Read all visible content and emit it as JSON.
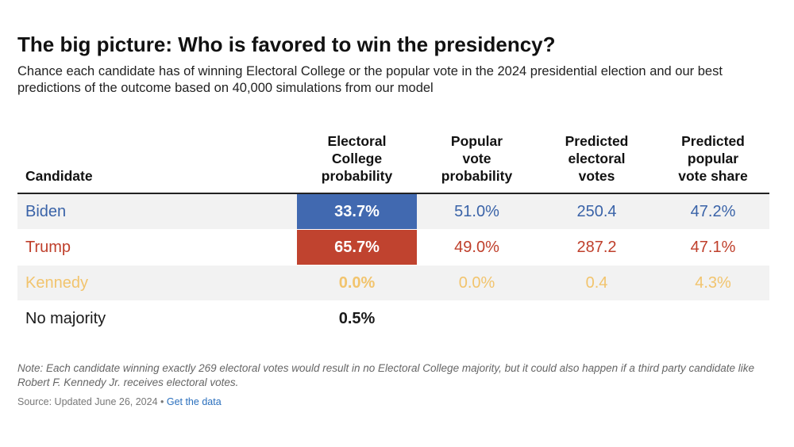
{
  "title": "The big picture: Who is favored to win the presidency?",
  "subtitle": "Chance each candidate has of winning Electoral College or the popular vote in the 2024 presidential election and our best predictions of the outcome based on 40,000 simulations from our model",
  "colors": {
    "biden": "#3a63a8",
    "trump": "#bf3f2b",
    "kennedy": "#f2c46d",
    "no_majority": "#1a1a1a",
    "biden_fill": "#4169b0",
    "trump_fill": "#c0432f"
  },
  "chart_data": {
    "type": "table",
    "columns": [
      "Candidate",
      "Electoral College probability",
      "Popular vote probability",
      "Predicted electoral votes",
      "Predicted popular vote share"
    ],
    "rows": [
      {
        "candidate": "Biden",
        "ec_prob": "33.7%",
        "pop_prob": "51.0%",
        "ev": "250.4",
        "pop_share": "47.2%"
      },
      {
        "candidate": "Trump",
        "ec_prob": "65.7%",
        "pop_prob": "49.0%",
        "ev": "287.2",
        "pop_share": "47.1%"
      },
      {
        "candidate": "Kennedy",
        "ec_prob": "0.0%",
        "pop_prob": "0.0%",
        "ev": "0.4",
        "pop_share": "4.3%"
      },
      {
        "candidate": "No majority",
        "ec_prob": "0.5%",
        "pop_prob": "",
        "ev": "",
        "pop_share": ""
      }
    ],
    "highlight": {
      "column": "Electoral College probability",
      "rows": [
        "Biden",
        "Trump"
      ]
    }
  },
  "headers": {
    "candidate": "Candidate",
    "ec_prob_l1": "Electoral",
    "ec_prob_l2": "College",
    "ec_prob_l3": "probability",
    "pop_prob_l1": "Popular",
    "pop_prob_l2": "vote",
    "pop_prob_l3": "probability",
    "ev_l1": "Predicted",
    "ev_l2": "electoral",
    "ev_l3": "votes",
    "share_l1": "Predicted",
    "share_l2": "popular",
    "share_l3": "vote share"
  },
  "note": "Note: Each candidate winning exactly 269 electoral votes would result in no Electoral College majority, but it could also happen if a third party candidate like Robert F. Kennedy Jr. receives electoral votes.",
  "source": {
    "text": "Source: Updated June 26, 2024 • ",
    "link_label": "Get the data"
  }
}
